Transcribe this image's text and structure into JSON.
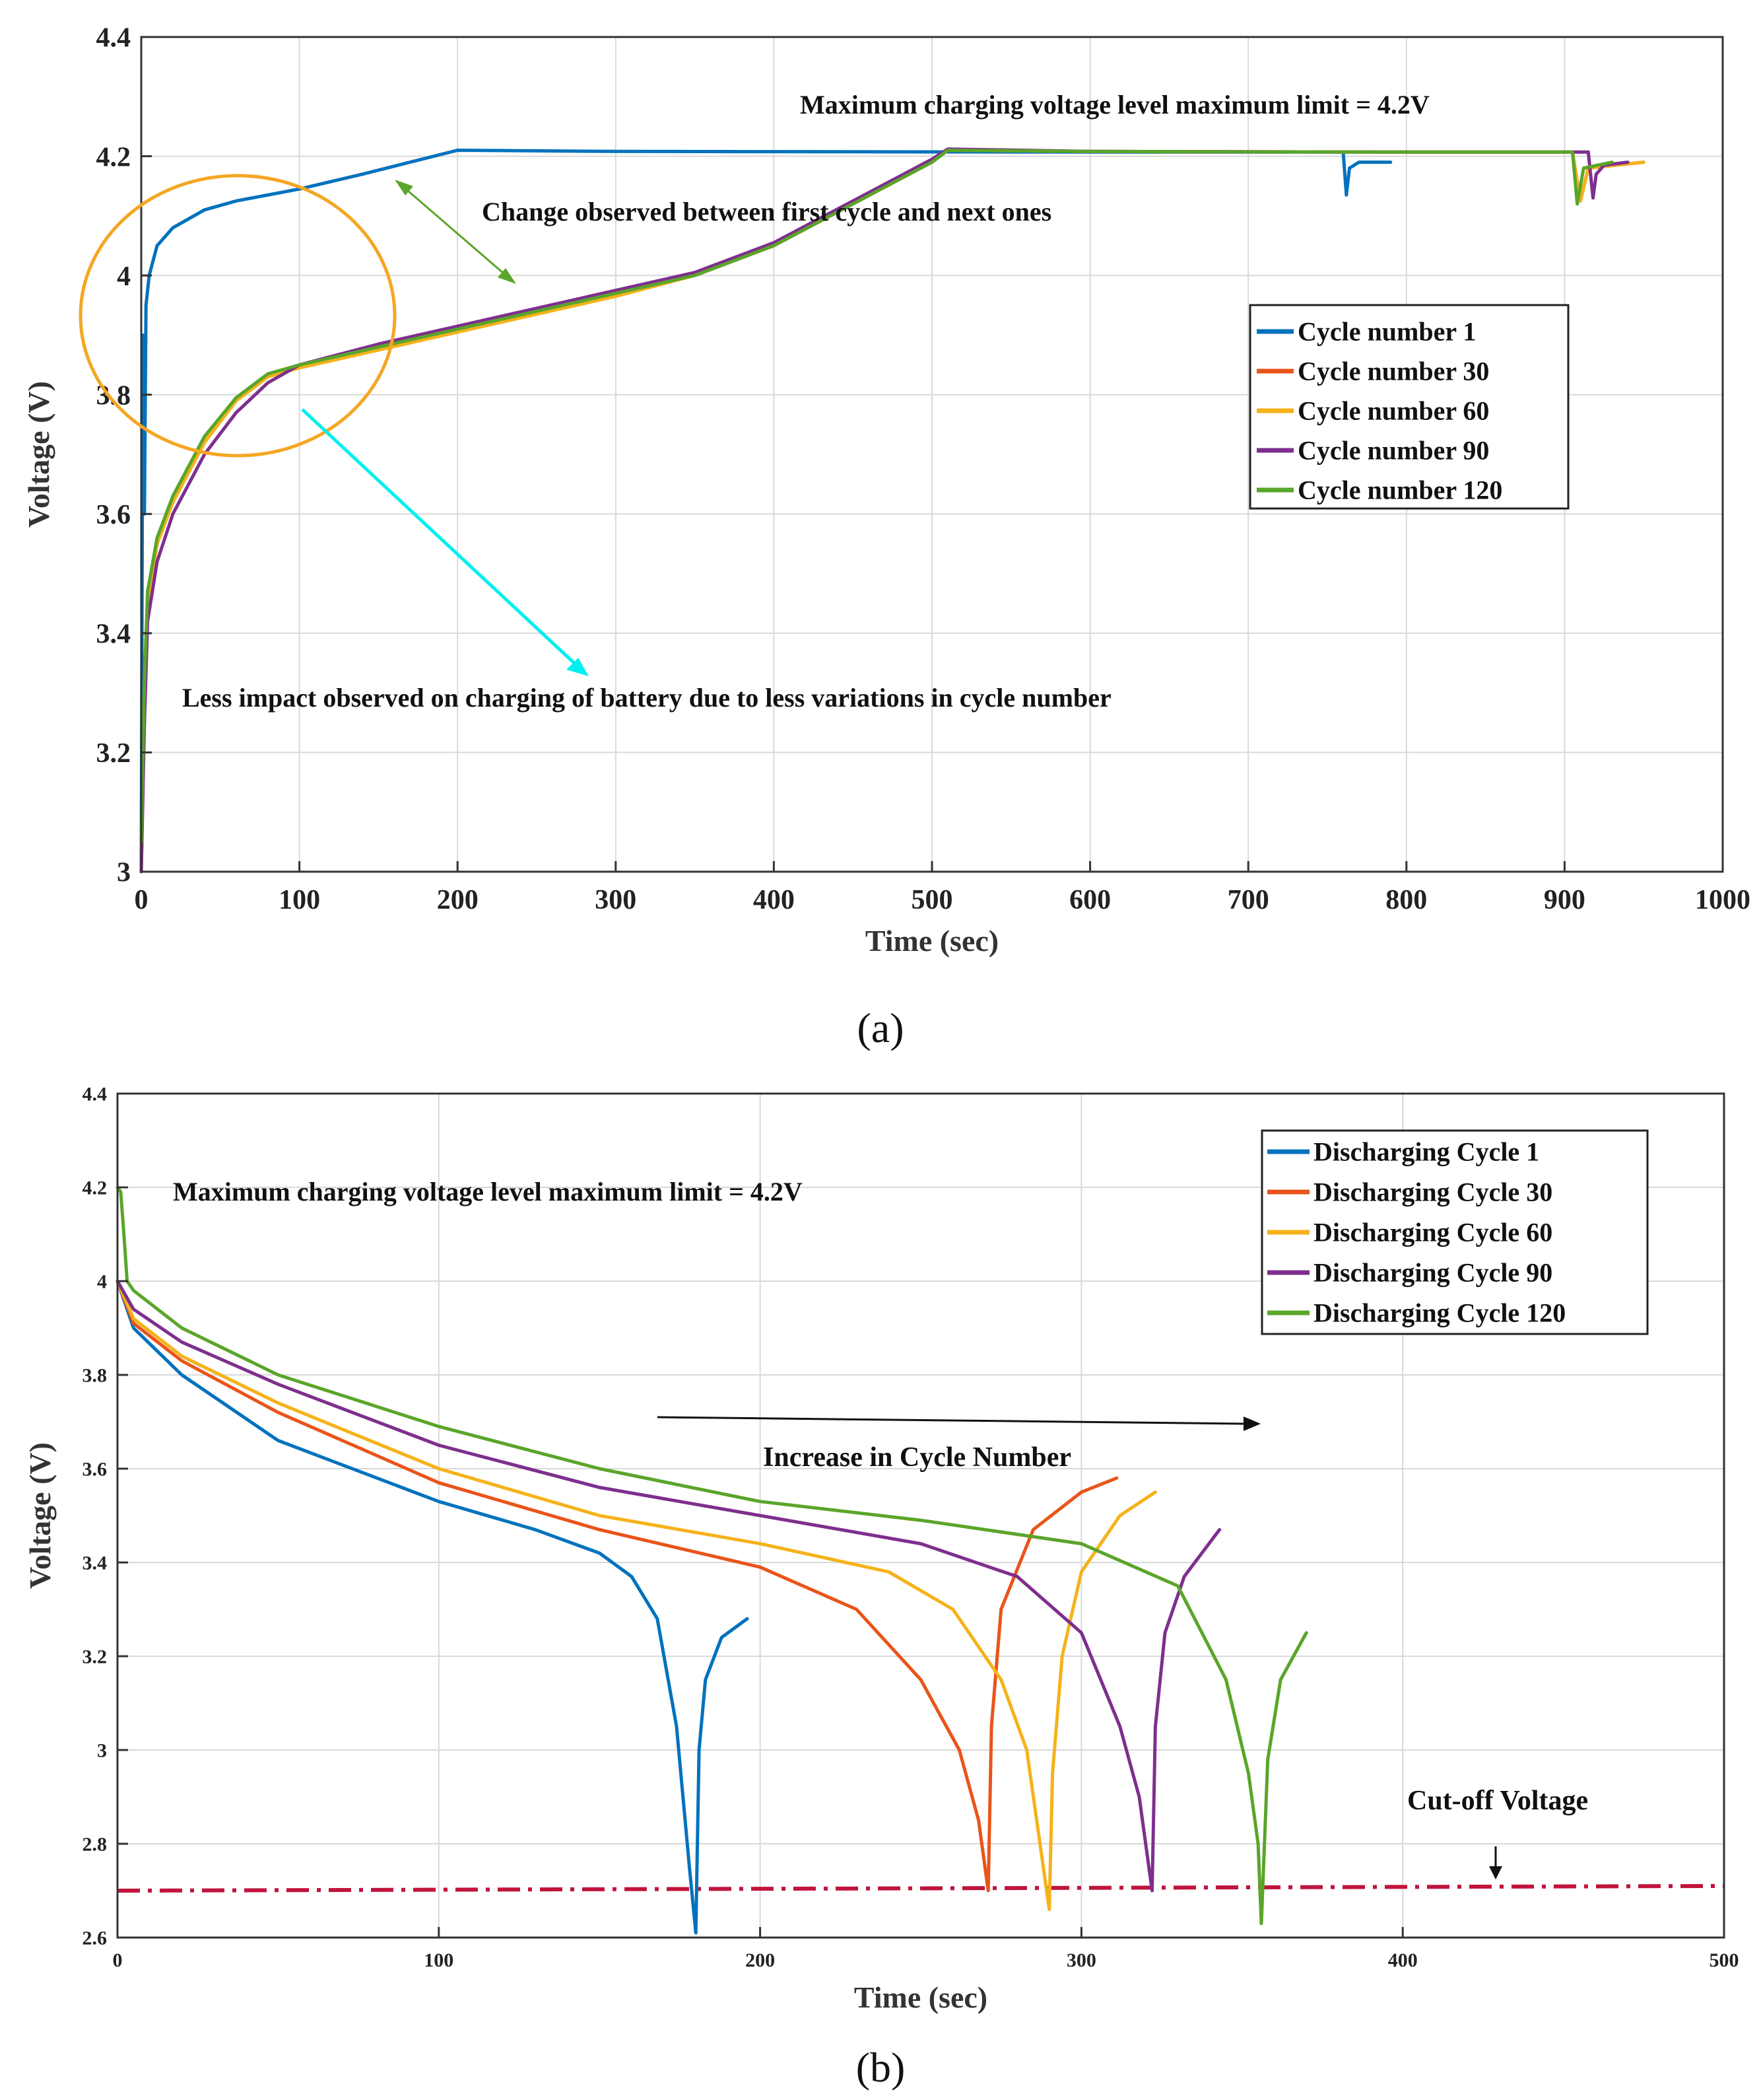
{
  "colors": {
    "blue": "#0072BD",
    "orange": "#E9541A",
    "yellow": "#F5B21A",
    "purple": "#7E2F8E",
    "green": "#5AA52A",
    "cyan": "#00F0F0",
    "ellipse": "#F5A623",
    "cutoff": "#C0143C",
    "grid": "#D9D9D9"
  },
  "chart_data": [
    {
      "type": "line",
      "subplot_label": "(a)",
      "xlabel": "Time (sec)",
      "ylabel": "Voltage (V)",
      "xlim": [
        0,
        1000
      ],
      "ylim": [
        3,
        4.4
      ],
      "xticks": [
        0,
        100,
        200,
        300,
        400,
        500,
        600,
        700,
        800,
        900,
        1000
      ],
      "yticks": [
        3,
        3.2,
        3.4,
        3.6,
        3.8,
        4,
        4.2,
        4.4
      ],
      "grid": true,
      "legend_position": "right-center",
      "annotations": {
        "max_limit": "Maximum charging voltage level maximum limit = 4.2V",
        "change": "Change observed between first cycle and next ones",
        "less_impact": "Less impact observed on charging of battery due to less variations in cycle number"
      },
      "series": [
        {
          "name": "Cycle number 1",
          "color_key": "blue",
          "x": [
            0,
            1,
            2,
            3,
            5,
            10,
            20,
            40,
            60,
            100,
            140,
            170,
            200,
            300,
            600,
            760,
            762,
            764,
            770,
            790
          ],
          "y": [
            3.0,
            3.9,
            3.6,
            3.95,
            4.0,
            4.05,
            4.08,
            4.11,
            4.125,
            4.145,
            4.17,
            4.19,
            4.21,
            4.208,
            4.207,
            4.207,
            4.135,
            4.18,
            4.19,
            4.19
          ]
        },
        {
          "name": "Cycle number 30",
          "color_key": "orange",
          "x": [
            0,
            2,
            4,
            10,
            20,
            40,
            60,
            80,
            100,
            150,
            200,
            250,
            300,
            350,
            400,
            450,
            500,
            510,
            600,
            800,
            905,
            910,
            915,
            950
          ],
          "y": [
            3.0,
            3.3,
            3.45,
            3.55,
            3.62,
            3.72,
            3.79,
            3.83,
            3.85,
            3.88,
            3.91,
            3.94,
            3.97,
            4.0,
            4.05,
            4.12,
            4.19,
            4.21,
            4.208,
            4.207,
            4.207,
            4.125,
            4.18,
            4.19
          ]
        },
        {
          "name": "Cycle number 60",
          "color_key": "yellow",
          "x": [
            0,
            2,
            4,
            10,
            20,
            40,
            60,
            80,
            100,
            150,
            200,
            250,
            300,
            350,
            400,
            450,
            500,
            510,
            600,
            800,
            905,
            910,
            915,
            950
          ],
          "y": [
            3.0,
            3.3,
            3.45,
            3.55,
            3.62,
            3.72,
            3.79,
            3.83,
            3.845,
            3.875,
            3.905,
            3.935,
            3.965,
            4.0,
            4.05,
            4.12,
            4.19,
            4.21,
            4.208,
            4.207,
            4.207,
            4.125,
            4.18,
            4.19
          ]
        },
        {
          "name": "Cycle number 90",
          "color_key": "purple",
          "x": [
            0,
            2,
            4,
            10,
            20,
            40,
            60,
            80,
            100,
            150,
            200,
            250,
            300,
            350,
            400,
            450,
            500,
            510,
            600,
            800,
            915,
            918,
            920,
            925,
            940
          ],
          "y": [
            3.0,
            3.25,
            3.42,
            3.52,
            3.6,
            3.7,
            3.77,
            3.82,
            3.85,
            3.885,
            3.915,
            3.945,
            3.975,
            4.005,
            4.055,
            4.125,
            4.195,
            4.212,
            4.208,
            4.207,
            4.207,
            4.13,
            4.17,
            4.185,
            4.19
          ]
        },
        {
          "name": "Cycle number 120",
          "color_key": "green",
          "x": [
            0,
            2,
            4,
            10,
            20,
            40,
            60,
            80,
            100,
            150,
            200,
            250,
            300,
            350,
            400,
            450,
            500,
            510,
            600,
            800,
            905,
            908,
            912,
            930
          ],
          "y": [
            3.05,
            3.32,
            3.47,
            3.56,
            3.63,
            3.73,
            3.795,
            3.835,
            3.85,
            3.88,
            3.91,
            3.94,
            3.97,
            4.0,
            4.05,
            4.12,
            4.19,
            4.21,
            4.208,
            4.207,
            4.207,
            4.12,
            4.18,
            4.19
          ]
        }
      ]
    },
    {
      "type": "line",
      "subplot_label": "(b)",
      "xlabel": "Time (sec)",
      "ylabel": "Voltage (V)",
      "xlim": [
        0,
        500
      ],
      "ylim": [
        2.6,
        4.4
      ],
      "xticks": [
        0,
        100,
        200,
        300,
        400,
        500
      ],
      "yticks": [
        2.6,
        2.8,
        3,
        3.2,
        3.4,
        3.6,
        3.8,
        4,
        4.2,
        4.4
      ],
      "grid": true,
      "legend_position": "top-right",
      "annotations": {
        "max_limit": "Maximum charging voltage level maximum limit = 4.2V",
        "increase": "Increase in Cycle Number",
        "cutoff": "Cut-off Voltage"
      },
      "cutoff_voltage": {
        "x": [
          0,
          500
        ],
        "y": [
          2.7,
          2.71
        ]
      },
      "series": [
        {
          "name": "Discharging Cycle 1",
          "color_key": "blue",
          "x": [
            0,
            5,
            20,
            50,
            100,
            130,
            150,
            160,
            168,
            174,
            178,
            180,
            181,
            183,
            188,
            196
          ],
          "y": [
            4.0,
            3.9,
            3.8,
            3.66,
            3.53,
            3.47,
            3.42,
            3.37,
            3.28,
            3.05,
            2.75,
            2.61,
            3.0,
            3.15,
            3.24,
            3.28
          ]
        },
        {
          "name": "Discharging Cycle 30",
          "color_key": "orange",
          "x": [
            0,
            5,
            20,
            50,
            100,
            150,
            200,
            230,
            250,
            262,
            268,
            271,
            272,
            275,
            285,
            300,
            311
          ],
          "y": [
            4.0,
            3.91,
            3.83,
            3.72,
            3.57,
            3.47,
            3.39,
            3.3,
            3.15,
            3.0,
            2.85,
            2.7,
            3.05,
            3.3,
            3.47,
            3.55,
            3.58
          ]
        },
        {
          "name": "Discharging Cycle 60",
          "color_key": "yellow",
          "x": [
            0,
            5,
            20,
            50,
            100,
            150,
            200,
            240,
            260,
            275,
            283,
            290,
            291,
            294,
            300,
            312,
            323
          ],
          "y": [
            4.0,
            3.92,
            3.84,
            3.74,
            3.6,
            3.5,
            3.44,
            3.38,
            3.3,
            3.15,
            3.0,
            2.66,
            2.95,
            3.2,
            3.38,
            3.5,
            3.55
          ]
        },
        {
          "name": "Discharging Cycle 90",
          "color_key": "purple",
          "x": [
            0,
            5,
            20,
            50,
            100,
            150,
            200,
            250,
            280,
            300,
            312,
            318,
            322,
            323,
            326,
            332,
            343
          ],
          "y": [
            4.0,
            3.94,
            3.87,
            3.78,
            3.65,
            3.56,
            3.5,
            3.44,
            3.37,
            3.25,
            3.05,
            2.9,
            2.7,
            3.05,
            3.25,
            3.37,
            3.47
          ]
        },
        {
          "name": "Discharging Cycle 120",
          "color_key": "green",
          "x": [
            0,
            1,
            2,
            3,
            5,
            20,
            50,
            100,
            150,
            200,
            250,
            300,
            330,
            345,
            352,
            355,
            356,
            358,
            362,
            370
          ],
          "y": [
            4.2,
            4.19,
            4.1,
            4.0,
            3.98,
            3.9,
            3.8,
            3.69,
            3.6,
            3.53,
            3.49,
            3.44,
            3.35,
            3.15,
            2.95,
            2.8,
            2.63,
            2.98,
            3.15,
            3.25
          ]
        }
      ]
    }
  ]
}
